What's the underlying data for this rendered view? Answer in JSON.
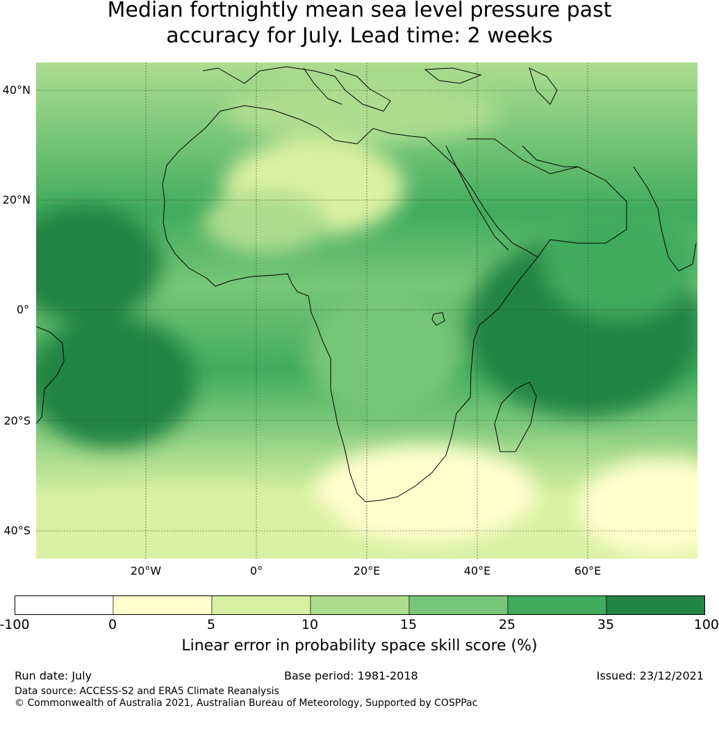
{
  "title": {
    "line1": "Median fortnightly mean sea level pressure past",
    "line2": "accuracy for July. Lead time: 2 weeks"
  },
  "map": {
    "region": "Africa",
    "lat_labels": [
      "40°N",
      "20°N",
      "0°",
      "20°S",
      "40°S"
    ],
    "lon_labels": [
      "20°W",
      "0°",
      "20°E",
      "40°E",
      "60°E"
    ],
    "gridlines": true
  },
  "colorbar": {
    "boundaries": [
      "-100",
      "0",
      "5",
      "10",
      "15",
      "25",
      "35",
      "100"
    ],
    "colors": [
      "#ffffff",
      "#ffffcc",
      "#d9f0a3",
      "#addd8e",
      "#78c679",
      "#41ab5d",
      "#238443"
    ],
    "label": "Linear error in probability space skill score (%)"
  },
  "footer": {
    "run_date": "Run date: July",
    "base_period": "Base period: 1981-2018",
    "issued": "Issued: 23/12/2021",
    "data_source": "Data source: ACCESS-S2 and ERA5 Climate Reanalysis",
    "copyright": "© Commonwealth of Australia 2021, Australian Bureau of Meteorology, Supported by COSPPac"
  }
}
